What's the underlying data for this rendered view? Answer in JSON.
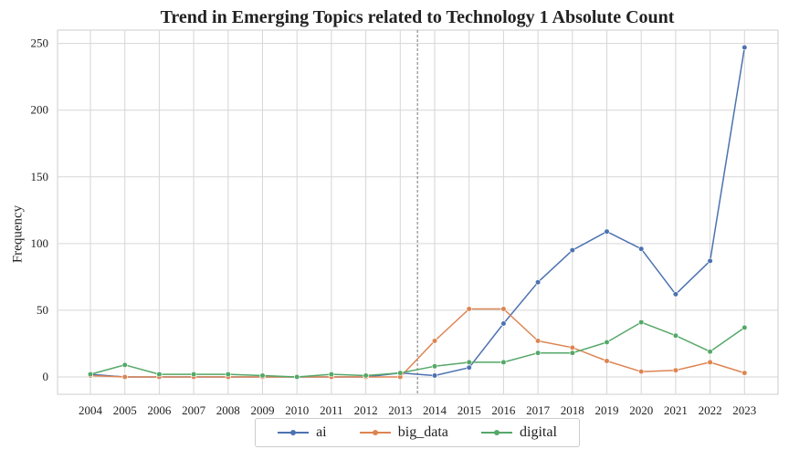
{
  "chart_data": {
    "type": "line",
    "title": "Trend in Emerging Topics related to Technology 1  Absolute Count",
    "xlabel": "",
    "ylabel": "Frequency",
    "categories": [
      "2004",
      "2005",
      "2006",
      "2007",
      "2008",
      "2009",
      "2010",
      "2011",
      "2012",
      "2013",
      "2014",
      "2015",
      "2016",
      "2017",
      "2018",
      "2019",
      "2020",
      "2021",
      "2022",
      "2023"
    ],
    "ylim": [
      -13,
      260
    ],
    "yticks": [
      0,
      50,
      100,
      150,
      200,
      250
    ],
    "grid": true,
    "legend_position": "bottom-center",
    "reference_line_x": 2013.5,
    "series": [
      {
        "name": "ai",
        "color": "#4c72b0",
        "values": [
          2,
          0,
          0,
          0,
          0,
          0,
          0,
          0,
          0,
          3,
          1,
          7,
          40,
          71,
          95,
          109,
          96,
          62,
          87,
          247
        ]
      },
      {
        "name": "big_data",
        "color": "#dd8452",
        "values": [
          1,
          0,
          0,
          0,
          0,
          0,
          0,
          0,
          0,
          0,
          27,
          51,
          51,
          27,
          22,
          12,
          4,
          5,
          11,
          3
        ]
      },
      {
        "name": "digital",
        "color": "#55a868",
        "values": [
          2,
          9,
          2,
          2,
          2,
          1,
          0,
          2,
          1,
          3,
          8,
          11,
          11,
          18,
          18,
          26,
          41,
          31,
          19,
          37
        ]
      }
    ]
  }
}
